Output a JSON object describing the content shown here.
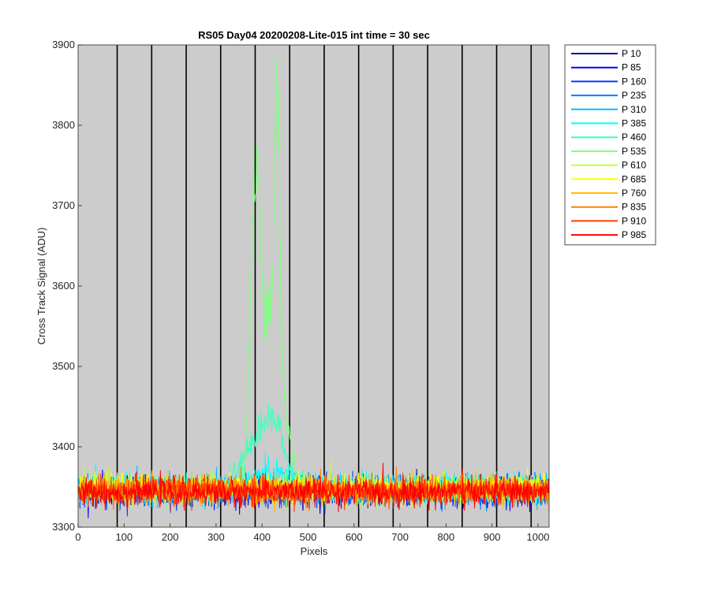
{
  "chart_data": {
    "type": "line",
    "title": "RS05 Day04 20200208-Lite-015 int time = 30 sec",
    "xlabel": "Pixels",
    "ylabel": "Cross Track Signal (ADU)",
    "xlim": [
      0,
      1024
    ],
    "ylim": [
      3300,
      3900
    ],
    "xticks": [
      0,
      100,
      200,
      300,
      400,
      500,
      600,
      700,
      800,
      900,
      1000
    ],
    "yticks": [
      3300,
      3400,
      3500,
      3600,
      3700,
      3800,
      3900
    ],
    "background": "#cccccc",
    "vertical_lines_x": [
      85,
      160,
      235,
      310,
      385,
      460,
      535,
      610,
      685,
      760,
      835,
      910,
      985
    ],
    "legend_position": "outside-right-top",
    "series": [
      {
        "name": "P 10",
        "color": "#0000aa",
        "baseline": 3345,
        "noise": 14
      },
      {
        "name": "P 85",
        "color": "#0000ff",
        "baseline": 3345,
        "noise": 14
      },
      {
        "name": "P 160",
        "color": "#0040ff",
        "baseline": 3345,
        "noise": 14
      },
      {
        "name": "P 235",
        "color": "#0080ff",
        "baseline": 3345,
        "noise": 14
      },
      {
        "name": "P 310",
        "color": "#00bfff",
        "baseline": 3347,
        "noise": 14
      },
      {
        "name": "P 385",
        "color": "#00ffff",
        "baseline": 3348,
        "noise": 14,
        "peaks": [
          {
            "center": 420,
            "width": 60,
            "height": 20
          }
        ]
      },
      {
        "name": "P 460",
        "color": "#40ffbf",
        "baseline": 3348,
        "noise": 13,
        "peaks": [
          {
            "center": 405,
            "width": 55,
            "height": 75
          },
          {
            "center": 430,
            "width": 20,
            "height": 25
          }
        ]
      },
      {
        "name": "P 535",
        "color": "#80ff80",
        "baseline": 3347,
        "noise": 13,
        "peaks": [
          {
            "center": 385,
            "width": 14,
            "height": 330
          },
          {
            "center": 420,
            "width": 35,
            "height": 220
          },
          {
            "center": 433,
            "width": 7,
            "height": 330
          }
        ]
      },
      {
        "name": "P 610",
        "color": "#bfff40",
        "baseline": 3348,
        "noise": 14
      },
      {
        "name": "P 685",
        "color": "#ffff00",
        "baseline": 3349,
        "noise": 14
      },
      {
        "name": "P 760",
        "color": "#ffbf00",
        "baseline": 3347,
        "noise": 14
      },
      {
        "name": "P 835",
        "color": "#ff8000",
        "baseline": 3345,
        "noise": 14
      },
      {
        "name": "P 910",
        "color": "#ff4000",
        "baseline": 3345,
        "noise": 14
      },
      {
        "name": "P 985",
        "color": "#ff0000",
        "baseline": 3344,
        "noise": 14
      }
    ]
  }
}
